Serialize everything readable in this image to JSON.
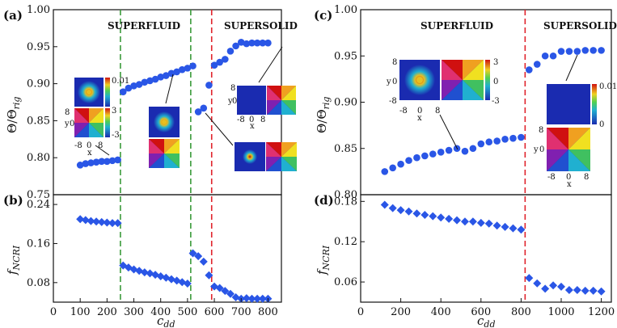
{
  "chart_data": [
    {
      "panel_label": "(a)",
      "type": "scatter",
      "ylabel": "Θ/Θ",
      "ylabel_sub": "rig",
      "ylim": [
        0.75,
        1.0
      ],
      "yticks": [
        "0.75",
        "0.80",
        "0.85",
        "0.90",
        "0.95",
        "1.00"
      ],
      "xlim": [
        0,
        850
      ],
      "phase_labels": [
        "SUPERFLUID",
        "SUPERSOLID"
      ],
      "vlines": [
        {
          "x": 250,
          "color": "#3a9a3a"
        },
        {
          "x": 512,
          "color": "#3a9a3a"
        },
        {
          "x": 590,
          "color": "#e0232c"
        }
      ],
      "x": [
        100,
        120,
        140,
        160,
        180,
        200,
        220,
        240,
        260,
        280,
        300,
        320,
        340,
        360,
        380,
        400,
        420,
        440,
        460,
        480,
        500,
        520,
        540,
        560,
        580,
        600,
        620,
        640,
        660,
        680,
        700,
        720,
        740,
        760,
        780,
        800
      ],
      "y": [
        0.79,
        0.792,
        0.793,
        0.794,
        0.795,
        0.795,
        0.796,
        0.797,
        0.889,
        0.894,
        0.897,
        0.899,
        0.902,
        0.904,
        0.906,
        0.909,
        0.911,
        0.914,
        0.916,
        0.919,
        0.921,
        0.924,
        0.862,
        0.867,
        0.898,
        0.925,
        0.929,
        0.933,
        0.944,
        0.951,
        0.956,
        0.954,
        0.955,
        0.955,
        0.955,
        0.955
      ],
      "marker": "circle",
      "color": "#2a56e6"
    },
    {
      "panel_label": "(b)",
      "type": "scatter",
      "ylabel": "f",
      "ylabel_sub": "NCRI",
      "xlabel": "c",
      "xlabel_sub": "dd",
      "xlim": [
        0,
        850
      ],
      "xticks": [
        "0",
        "100",
        "200",
        "300",
        "400",
        "500",
        "600",
        "700",
        "800"
      ],
      "ylim": [
        0.04,
        0.26
      ],
      "yticks": [
        "0.08",
        "0.16",
        "0.24"
      ],
      "x": [
        100,
        120,
        140,
        160,
        180,
        200,
        220,
        240,
        260,
        280,
        300,
        320,
        340,
        360,
        380,
        400,
        420,
        440,
        460,
        480,
        500,
        520,
        540,
        560,
        580,
        600,
        620,
        640,
        660,
        680,
        700,
        720,
        740,
        760,
        780,
        800
      ],
      "y": [
        0.21,
        0.208,
        0.206,
        0.205,
        0.204,
        0.203,
        0.202,
        0.202,
        0.115,
        0.111,
        0.107,
        0.104,
        0.101,
        0.099,
        0.096,
        0.093,
        0.09,
        0.087,
        0.084,
        0.081,
        0.078,
        0.14,
        0.134,
        0.123,
        0.095,
        0.072,
        0.069,
        0.063,
        0.057,
        0.05,
        0.047,
        0.048,
        0.047,
        0.047,
        0.047,
        0.047
      ],
      "marker": "diamond",
      "color": "#2a56e6"
    },
    {
      "panel_label": "(c)",
      "type": "scatter",
      "ylabel": "Θ/Θ",
      "ylabel_sub": "rig",
      "ylim": [
        0.8,
        1.0
      ],
      "yticks": [
        "0.80",
        "0.85",
        "0.90",
        "0.95",
        "1.00"
      ],
      "xlim": [
        0,
        1250
      ],
      "phase_labels": [
        "SUPERFLUID",
        "SUPERSOLID"
      ],
      "vlines": [
        {
          "x": 820,
          "color": "#e0232c"
        }
      ],
      "x": [
        120,
        160,
        200,
        240,
        280,
        320,
        360,
        400,
        440,
        480,
        520,
        560,
        600,
        640,
        680,
        720,
        760,
        800,
        840,
        880,
        920,
        960,
        1000,
        1040,
        1080,
        1120,
        1160,
        1200
      ],
      "y": [
        0.825,
        0.829,
        0.833,
        0.837,
        0.84,
        0.842,
        0.844,
        0.846,
        0.848,
        0.85,
        0.847,
        0.85,
        0.855,
        0.857,
        0.858,
        0.86,
        0.861,
        0.862,
        0.935,
        0.941,
        0.95,
        0.95,
        0.955,
        0.955,
        0.955,
        0.956,
        0.956,
        0.956
      ],
      "marker": "circle",
      "color": "#2a56e6"
    },
    {
      "panel_label": "(d)",
      "type": "scatter",
      "ylabel": "f",
      "ylabel_sub": "NCRI",
      "xlabel": "c",
      "xlabel_sub": "dd",
      "xlim": [
        0,
        1250
      ],
      "xticks": [
        "0",
        "200",
        "400",
        "600",
        "800",
        "1000",
        "1200"
      ],
      "ylim": [
        0.03,
        0.19
      ],
      "yticks": [
        "0.06",
        "0.12",
        "0.18"
      ],
      "x": [
        120,
        160,
        200,
        240,
        280,
        320,
        360,
        400,
        440,
        480,
        520,
        560,
        600,
        640,
        680,
        720,
        760,
        800,
        840,
        880,
        920,
        960,
        1000,
        1040,
        1080,
        1120,
        1160,
        1200
      ],
      "y": [
        0.175,
        0.17,
        0.167,
        0.165,
        0.162,
        0.16,
        0.158,
        0.156,
        0.154,
        0.152,
        0.15,
        0.15,
        0.148,
        0.147,
        0.144,
        0.142,
        0.14,
        0.138,
        0.066,
        0.058,
        0.05,
        0.055,
        0.053,
        0.048,
        0.048,
        0.047,
        0.047,
        0.046
      ],
      "marker": "diamond",
      "color": "#2a56e6"
    }
  ],
  "insets": {
    "tick_8": "8",
    "tick_0": "0",
    "tick_m8": "-8",
    "tick_m3": "-3",
    "tick_3": "3",
    "tick_001": "0.01",
    "axis_x": "x",
    "axis_y": "y"
  },
  "colors": {
    "series": "#2a56e6",
    "green_line": "#3a9a3a",
    "red_line": "#e0232c"
  }
}
